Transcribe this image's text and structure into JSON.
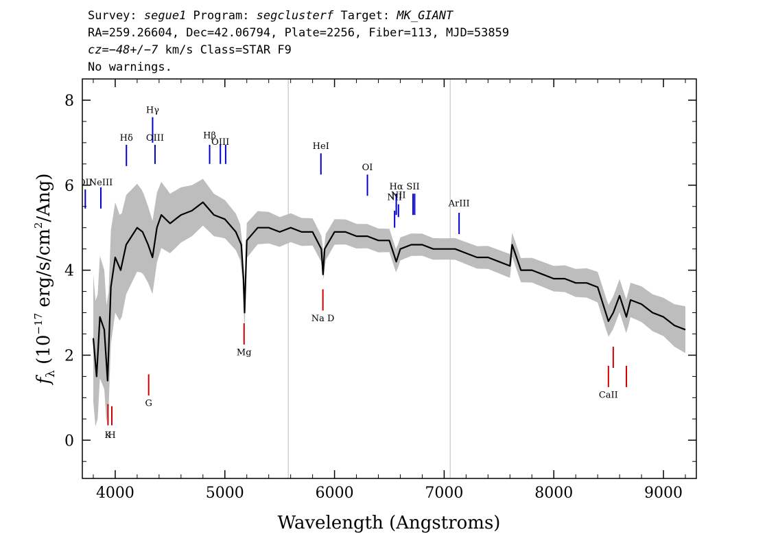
{
  "header": {
    "line1": {
      "p1": "Survey: ",
      "survey": "segue1",
      "p2": " Program: ",
      "program": "segclusterf",
      "p3": " Target: ",
      "target": "MK_GIANT"
    },
    "line2": "RA=259.26604, Dec=42.06794, Plate=2256, Fiber=113, MJD=53859",
    "line3": {
      "cz": "cz=−48+/−7",
      "rest": " km/s Class=STAR F9"
    },
    "line4": "No warnings."
  },
  "chart_data": {
    "type": "line",
    "xlabel": "Wavelength (Angstroms)",
    "ylabel_parts": {
      "f": "f",
      "sub": "λ",
      "pre": " (10",
      "exp1": "−17",
      "mid": " erg/s/cm",
      "exp2": "2",
      "post": "/Ang)"
    },
    "xlim": [
      3700,
      9300
    ],
    "ylim": [
      -0.9,
      8.5
    ],
    "x_ticks": [
      4000,
      5000,
      6000,
      7000,
      8000,
      9000
    ],
    "x_tick_labels": [
      "4000",
      "5000",
      "6000",
      "7000",
      "8000",
      "9000"
    ],
    "y_ticks": [
      0,
      2,
      4,
      6,
      8
    ],
    "y_tick_labels": [
      "0",
      "2",
      "4",
      "6",
      "8"
    ],
    "grid": false,
    "vertical_markers": [
      5578,
      7055
    ],
    "colors": {
      "flux": "#000000",
      "error_band": "#bdbdbd",
      "emission": "#0000cc",
      "absorption": "#cc0000",
      "marker": "#bbbbbb"
    },
    "series": [
      {
        "name": "flux",
        "x": [
          3800,
          3830,
          3860,
          3900,
          3930,
          3960,
          4000,
          4050,
          4100,
          4150,
          4200,
          4250,
          4300,
          4340,
          4380,
          4420,
          4500,
          4550,
          4600,
          4700,
          4800,
          4900,
          5000,
          5100,
          5150,
          5170,
          5180,
          5200,
          5300,
          5400,
          5500,
          5600,
          5700,
          5800,
          5880,
          5895,
          5910,
          6000,
          6100,
          6200,
          6300,
          6400,
          6500,
          6563,
          6600,
          6700,
          6800,
          6900,
          7000,
          7100,
          7200,
          7300,
          7400,
          7500,
          7600,
          7620,
          7700,
          7800,
          7900,
          8000,
          8100,
          8200,
          8300,
          8400,
          8498,
          8542,
          8600,
          8662,
          8700,
          8800,
          8900,
          9000,
          9100,
          9200
        ],
        "y": [
          2.4,
          1.5,
          2.9,
          2.6,
          1.4,
          3.6,
          4.3,
          4.0,
          4.6,
          4.8,
          5.0,
          4.9,
          4.6,
          4.3,
          5.0,
          5.3,
          5.1,
          5.2,
          5.3,
          5.4,
          5.6,
          5.3,
          5.2,
          4.9,
          4.6,
          3.8,
          3.0,
          4.7,
          5.0,
          5.0,
          4.9,
          5.0,
          4.9,
          4.9,
          4.5,
          3.9,
          4.5,
          4.9,
          4.9,
          4.8,
          4.8,
          4.7,
          4.7,
          4.2,
          4.5,
          4.6,
          4.6,
          4.5,
          4.5,
          4.5,
          4.4,
          4.3,
          4.3,
          4.2,
          4.1,
          4.6,
          4.0,
          4.0,
          3.9,
          3.8,
          3.8,
          3.7,
          3.7,
          3.6,
          2.8,
          3.0,
          3.4,
          2.9,
          3.3,
          3.2,
          3.0,
          2.9,
          2.7,
          2.6
        ]
      }
    ],
    "error_band": {
      "x": [
        3800,
        4000,
        4300,
        4500,
        5000,
        5500,
        6000,
        7000,
        8000,
        9000,
        9200
      ],
      "half_width": [
        1.5,
        1.3,
        0.9,
        0.7,
        0.45,
        0.35,
        0.3,
        0.25,
        0.3,
        0.45,
        0.55
      ]
    },
    "emission_lines": [
      {
        "label": "OII",
        "x": 3727,
        "y_top": 5.9,
        "y_bottom": 5.45,
        "label_y": 6.0
      },
      {
        "label": "NeIII",
        "x": 3869,
        "y_top": 5.95,
        "y_bottom": 5.45,
        "label_y": 6.0
      },
      {
        "label": "Hδ",
        "x": 4102,
        "y_top": 6.95,
        "y_bottom": 6.45,
        "label_y": 7.05
      },
      {
        "label": "Hγ",
        "x": 4341,
        "y_top": 7.6,
        "y_bottom": 7.0,
        "label_y": 7.7
      },
      {
        "label": "OIII",
        "x": 4363,
        "y_top": 6.95,
        "y_bottom": 6.5,
        "label_y": 7.05
      },
      {
        "label": "Hβ",
        "x": 4861,
        "y_top": 6.95,
        "y_bottom": 6.5,
        "label_y": 7.1
      },
      {
        "label": "OIII",
        "x": 4959,
        "y_top": 6.95,
        "y_bottom": 6.5,
        "label_y": 6.95
      },
      {
        "label": "",
        "x": 5007,
        "y_top": 6.95,
        "y_bottom": 6.5,
        "label_y": 6.95
      },
      {
        "label": "HeI",
        "x": 5876,
        "y_top": 6.75,
        "y_bottom": 6.25,
        "label_y": 6.85
      },
      {
        "label": "OI",
        "x": 6300,
        "y_top": 6.25,
        "y_bottom": 5.75,
        "label_y": 6.35
      },
      {
        "label": "NII",
        "x": 6548,
        "y_top": 5.4,
        "y_bottom": 5.0,
        "label_y": 5.65
      },
      {
        "label": "Hα",
        "x": 6563,
        "y_top": 5.8,
        "y_bottom": 5.3,
        "label_y": 5.9
      },
      {
        "label": "NII",
        "x": 6583,
        "y_top": 5.55,
        "y_bottom": 5.25,
        "label_y": 5.7
      },
      {
        "label": "SII",
        "x": 6716,
        "y_top": 5.8,
        "y_bottom": 5.3,
        "label_y": 5.9
      },
      {
        "label": "",
        "x": 6731,
        "y_top": 5.8,
        "y_bottom": 5.3,
        "label_y": 5.9
      },
      {
        "label": "ArIII",
        "x": 7136,
        "y_top": 5.35,
        "y_bottom": 4.85,
        "label_y": 5.5
      }
    ],
    "absorption_lines": [
      {
        "label": "K",
        "x": 3934,
        "y_top": 0.85,
        "y_bottom": 0.35,
        "label_y": 0.05
      },
      {
        "label": "H",
        "x": 3969,
        "y_top": 0.8,
        "y_bottom": 0.35,
        "label_y": 0.05
      },
      {
        "label": "G",
        "x": 4305,
        "y_top": 1.55,
        "y_bottom": 1.05,
        "label_y": 0.8
      },
      {
        "label": "Mg",
        "x": 5175,
        "y_top": 2.75,
        "y_bottom": 2.25,
        "label_y": 2.0
      },
      {
        "label": "Na D",
        "x": 5894,
        "y_top": 3.55,
        "y_bottom": 3.05,
        "label_y": 2.8
      },
      {
        "label": "CaII",
        "x": 8498,
        "y_top": 1.75,
        "y_bottom": 1.25,
        "label_y": 1.0
      },
      {
        "label": "",
        "x": 8542,
        "y_top": 2.2,
        "y_bottom": 1.7,
        "label_y": 1.0
      },
      {
        "label": "",
        "x": 8662,
        "y_top": 1.75,
        "y_bottom": 1.25,
        "label_y": 1.0
      }
    ]
  }
}
